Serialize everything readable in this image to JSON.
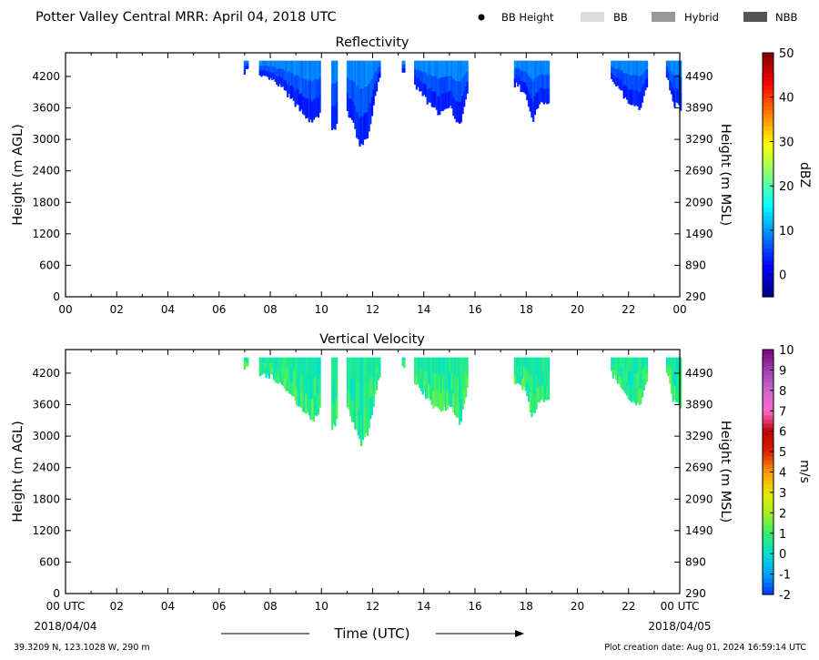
{
  "header": {
    "title": "Potter Valley Central MRR:  April 04, 2018 UTC",
    "legend": [
      {
        "label": "BB Height",
        "kind": "dot",
        "color": "#000000"
      },
      {
        "label": "BB",
        "kind": "box",
        "color": "#dcdcdc"
      },
      {
        "label": "Hybrid",
        "kind": "box",
        "color": "#999999"
      },
      {
        "label": "NBB",
        "kind": "box",
        "color": "#555555"
      }
    ]
  },
  "chart_data": [
    {
      "type": "heatmap",
      "title": "Reflectivity",
      "ylabel": "Height (m AGL)",
      "ylabel_right": "Height (m MSL)",
      "ylim": [
        0,
        4650
      ],
      "yticks": [
        "0",
        "600",
        "1200",
        "1800",
        "2400",
        "3000",
        "3600",
        "4200"
      ],
      "yticks_right": [
        "290",
        "890",
        "1490",
        "2090",
        "2690",
        "3290",
        "3890",
        "4490"
      ],
      "xlim": [
        0,
        24
      ],
      "xticks": [
        "00",
        "02",
        "04",
        "06",
        "08",
        "10",
        "12",
        "14",
        "16",
        "18",
        "20",
        "22",
        "00"
      ],
      "colorbar": {
        "label": "dBZ",
        "range": [
          -5,
          50
        ],
        "ticks": [
          "0",
          "10",
          "20",
          "30",
          "40",
          "50"
        ]
      },
      "echo_top_m": 4500,
      "echo_base_m": [
        [
          6.95,
          4300
        ],
        [
          7.05,
          4330
        ],
        [
          7.6,
          4180
        ],
        [
          8.0,
          4150
        ],
        [
          8.5,
          3950
        ],
        [
          8.9,
          3700
        ],
        [
          9.3,
          3500
        ],
        [
          9.6,
          3300
        ],
        [
          9.9,
          3500
        ],
        [
          10.3,
          3150
        ],
        [
          10.5,
          3200
        ],
        [
          10.8,
          3700
        ],
        [
          11.2,
          3300
        ],
        [
          11.5,
          2850
        ],
        [
          11.8,
          3100
        ],
        [
          12.2,
          4150
        ],
        [
          13.2,
          4300
        ],
        [
          13.5,
          4100
        ],
        [
          14.0,
          3800
        ],
        [
          14.3,
          3600
        ],
        [
          14.6,
          3500
        ],
        [
          15.0,
          3600
        ],
        [
          15.4,
          3250
        ],
        [
          15.65,
          3900
        ],
        [
          17.6,
          4050
        ],
        [
          17.9,
          3900
        ],
        [
          18.2,
          3350
        ],
        [
          18.5,
          3700
        ],
        [
          18.8,
          3700
        ],
        [
          21.3,
          4200
        ],
        [
          21.7,
          3900
        ],
        [
          22.0,
          3650
        ],
        [
          22.4,
          3600
        ],
        [
          22.65,
          4000
        ],
        [
          23.5,
          4200
        ],
        [
          23.7,
          3700
        ],
        [
          24.0,
          3600
        ]
      ],
      "echo_gaps_h": [
        [
          7.1,
          7.55
        ],
        [
          9.95,
          10.35
        ],
        [
          10.6,
          10.95
        ],
        [
          12.25,
          13.1
        ],
        [
          13.25,
          13.6
        ],
        [
          15.7,
          17.5
        ],
        [
          18.85,
          21.25
        ],
        [
          22.7,
          23.45
        ]
      ],
      "value_range": [
        2,
        10
      ]
    },
    {
      "type": "heatmap",
      "title": "Vertical Velocity",
      "ylabel": "Height (m AGL)",
      "ylabel_right": "Height (m MSL)",
      "ylim": [
        0,
        4650
      ],
      "yticks": [
        "0",
        "600",
        "1200",
        "1800",
        "2400",
        "3000",
        "3600",
        "4200"
      ],
      "yticks_right": [
        "290",
        "890",
        "1490",
        "2090",
        "2690",
        "3290",
        "3890",
        "4490"
      ],
      "xlim": [
        0,
        24
      ],
      "xticks": [
        "00 UTC",
        "02",
        "04",
        "06",
        "08",
        "10",
        "12",
        "14",
        "16",
        "18",
        "20",
        "22",
        "00 UTC"
      ],
      "xlabel": "Time (UTC)",
      "date_left": "2018/04/04",
      "date_right": "2018/04/05",
      "colorbar": {
        "label": "m/s",
        "range": [
          -2,
          10
        ],
        "ticks": [
          "-2",
          "-1",
          "0",
          "1",
          "2",
          "3",
          "4",
          "5",
          "6",
          "7",
          "8",
          "9",
          "10"
        ]
      },
      "echo_top_m": 4500,
      "value_range": [
        0,
        2
      ]
    }
  ],
  "footer": {
    "location": "39.3209 N, 123.1028 W, 290 m",
    "creation": "Plot creation date: Aug 01, 2024 16:59:14 UTC"
  },
  "colors": {
    "ref_cmap": [
      "#00007f",
      "#0000ff",
      "#007fff",
      "#00ffff",
      "#7fff7f",
      "#ffff00",
      "#ff7f00",
      "#ff0000",
      "#7f0000"
    ],
    "vel_cmap": [
      "#0033ff",
      "#00a0ff",
      "#00e0d0",
      "#30f070",
      "#a8f020",
      "#e8e800",
      "#ff9900",
      "#e02000",
      "#c00000",
      "#ff66cc",
      "#cc66cc",
      "#a040b0",
      "#800080"
    ]
  }
}
